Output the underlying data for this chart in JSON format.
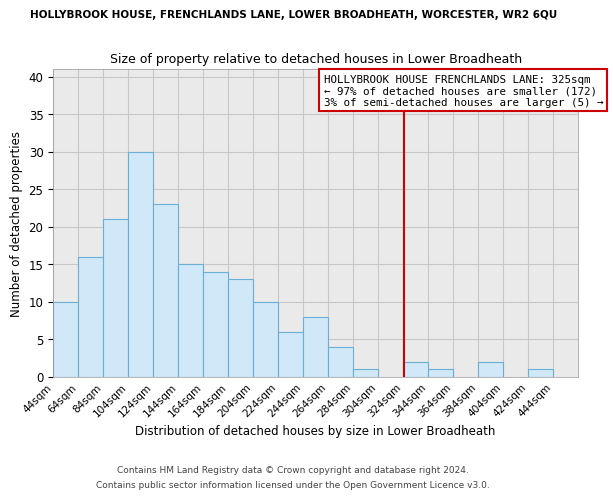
{
  "suptitle": "HOLLYBROOK HOUSE, FRENCHLANDS LANE, LOWER BROADHEATH, WORCESTER, WR2 6QU",
  "title": "Size of property relative to detached houses in Lower Broadheath",
  "xlabel": "Distribution of detached houses by size in Lower Broadheath",
  "ylabel": "Number of detached properties",
  "bin_labels": [
    "44sqm",
    "64sqm",
    "84sqm",
    "104sqm",
    "124sqm",
    "144sqm",
    "164sqm",
    "184sqm",
    "204sqm",
    "224sqm",
    "244sqm",
    "264sqm",
    "284sqm",
    "304sqm",
    "324sqm",
    "344sqm",
    "364sqm",
    "384sqm",
    "404sqm",
    "424sqm",
    "444sqm"
  ],
  "bin_left_edges": [
    44,
    64,
    84,
    104,
    124,
    144,
    164,
    184,
    204,
    224,
    244,
    264,
    284,
    304,
    324,
    344,
    364,
    384,
    404,
    424,
    444
  ],
  "counts": [
    10,
    16,
    21,
    30,
    23,
    15,
    14,
    13,
    10,
    6,
    8,
    4,
    1,
    0,
    2,
    1,
    0,
    2,
    0,
    1,
    0
  ],
  "bar_facecolor": "#d0e8f8",
  "bar_edgecolor": "#6aafd6",
  "vline_x": 325,
  "vline_color": "#cc0000",
  "grid_color": "#c8c8c8",
  "background_color": "#eaeaea",
  "ylim": [
    0,
    41
  ],
  "yticks": [
    0,
    5,
    10,
    15,
    20,
    25,
    30,
    35,
    40
  ],
  "annotation_title": "HOLLYBROOK HOUSE FRENCHLANDS LANE: 325sqm",
  "annotation_line1": "← 97% of detached houses are smaller (172)",
  "annotation_line2": "3% of semi-detached houses are larger (5) →",
  "footer1": "Contains HM Land Registry data © Crown copyright and database right 2024.",
  "footer2": "Contains public sector information licensed under the Open Government Licence v3.0."
}
